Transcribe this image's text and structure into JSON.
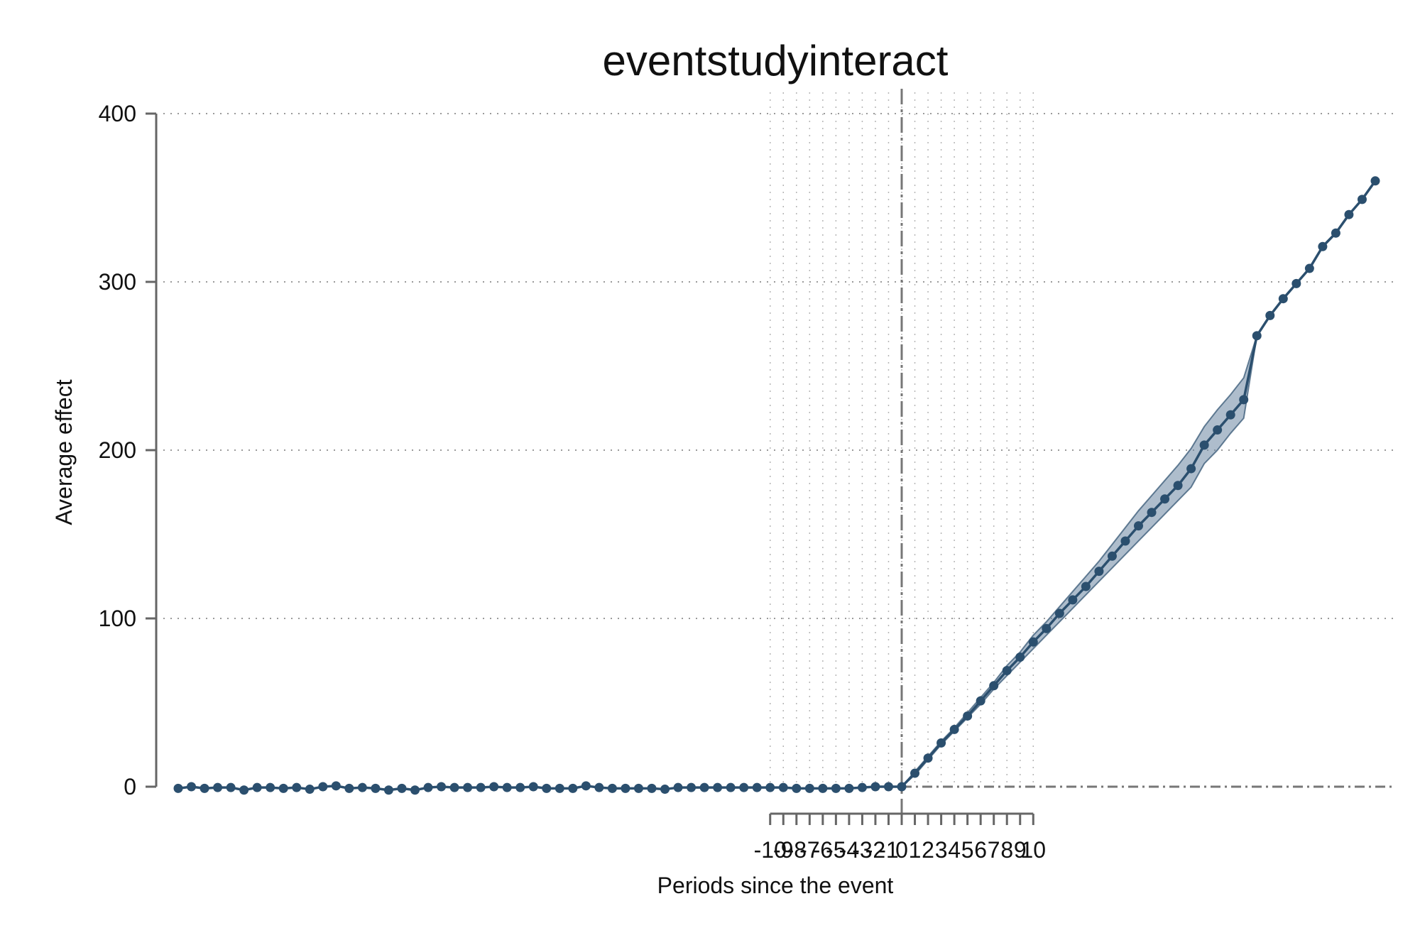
{
  "chart_data": {
    "type": "line",
    "title": "eventstudyinteract",
    "xlabel": "Periods since the event",
    "ylabel": "Average effect",
    "ylim": [
      0,
      400
    ],
    "yticks": [
      0,
      100,
      200,
      300,
      400
    ],
    "x_range": [
      -55,
      36
    ],
    "xtick_labels": [
      "-10",
      "-9",
      "-8",
      "-7",
      "-6",
      "-5",
      "-4",
      "-3",
      "-2",
      "-1",
      "0",
      "1",
      "2",
      "3",
      "4",
      "5",
      "6",
      "7",
      "8",
      "9",
      "10"
    ],
    "xtick_values": [
      -10,
      -9,
      -8,
      -7,
      -6,
      -5,
      -4,
      -3,
      -2,
      -1,
      0,
      1,
      2,
      3,
      4,
      5,
      6,
      7,
      8,
      9,
      10
    ],
    "event_line_x": 0,
    "reference_y": 0,
    "grid": true,
    "colors": {
      "series": "#2b4f6e",
      "band": "#6b87a3",
      "reference": "#777777"
    },
    "series": [
      {
        "x": [
          -55,
          -54,
          -53,
          -52,
          -51,
          -50,
          -49,
          -48,
          -47,
          -46,
          -45,
          -44,
          -43,
          -42,
          -41,
          -40,
          -39,
          -38,
          -37,
          -36,
          -35,
          -34,
          -33,
          -32,
          -31,
          -30,
          -29,
          -28,
          -27,
          -26,
          -25,
          -24,
          -23,
          -22,
          -21,
          -20,
          -19,
          -18,
          -17,
          -16,
          -15,
          -14,
          -13,
          -12,
          -11,
          -10,
          -9,
          -8,
          -7,
          -6,
          -5,
          -4,
          -3,
          -2,
          -1,
          0,
          1,
          2,
          3,
          4,
          5,
          6,
          7,
          8,
          9,
          10,
          11,
          12,
          13,
          14,
          15,
          16,
          17,
          18,
          19,
          20,
          21,
          22,
          23,
          24,
          25,
          26,
          27,
          28,
          29,
          30,
          31,
          32,
          33,
          34,
          35,
          36
        ],
        "y": [
          -1,
          0,
          -1,
          -0.5,
          -0.5,
          -2,
          -0.5,
          -0.5,
          -1,
          -0.5,
          -1.5,
          0,
          0.5,
          -1,
          -0.5,
          -1,
          -2,
          -1,
          -2,
          -0.5,
          0,
          -0.5,
          -0.5,
          -0.5,
          0,
          -0.5,
          -0.5,
          0,
          -1,
          -1,
          -1,
          0.5,
          -0.5,
          -1,
          -1,
          -1,
          -1,
          -1.5,
          -0.5,
          -0.5,
          -0.5,
          -0.5,
          -0.5,
          -0.5,
          -0.5,
          -0.5,
          -0.5,
          -1,
          -1,
          -1,
          -1,
          -1,
          -0.5,
          0,
          0,
          0,
          8,
          17,
          26,
          34,
          42,
          51,
          60,
          69,
          77,
          86,
          94,
          103,
          111,
          119,
          128,
          137,
          146,
          155,
          163,
          171,
          179,
          189,
          203,
          212,
          221,
          230,
          268,
          280,
          290,
          299,
          308,
          321,
          329,
          340,
          349,
          360
        ],
        "lower": [
          -1,
          0,
          -1,
          -0.5,
          -0.5,
          -2,
          -0.5,
          -0.5,
          -1,
          -0.5,
          -1.5,
          0,
          0.5,
          -1,
          -0.5,
          -1,
          -2,
          -1,
          -2,
          -0.5,
          0,
          -0.5,
          -0.5,
          -0.5,
          0,
          -0.5,
          -0.5,
          0,
          -1,
          -1,
          -1,
          0.5,
          -0.5,
          -1,
          -1,
          -1,
          -1,
          -1.5,
          -0.5,
          -0.5,
          -0.5,
          -0.5,
          -0.5,
          -0.5,
          -0.5,
          -0.5,
          -0.5,
          -1,
          -1,
          -1,
          -1,
          -1,
          -0.5,
          0,
          0,
          0,
          7,
          16,
          25,
          33,
          41,
          49,
          58,
          66,
          74,
          82,
          90,
          98,
          106,
          114,
          122,
          130,
          138,
          146,
          154,
          162,
          170,
          178,
          192,
          200,
          210,
          219,
          268,
          280,
          290,
          299,
          308,
          321,
          329,
          340,
          349,
          360
        ],
        "upper": [
          -1,
          0,
          -1,
          -0.5,
          -0.5,
          -2,
          -0.5,
          -0.5,
          -1,
          -0.5,
          -1.5,
          0,
          0.5,
          -1,
          -0.5,
          -1,
          -2,
          -1,
          -2,
          -0.5,
          0,
          -0.5,
          -0.5,
          -0.5,
          0,
          -0.5,
          -0.5,
          0,
          -1,
          -1,
          -1,
          0.5,
          -0.5,
          -1,
          -1,
          -1,
          -1,
          -1.5,
          -0.5,
          -0.5,
          -0.5,
          -0.5,
          -0.5,
          -0.5,
          -0.5,
          -0.5,
          -0.5,
          -1,
          -1,
          -1,
          -1,
          -1,
          -0.5,
          0,
          0,
          0,
          9,
          18,
          27,
          35,
          44,
          53,
          62,
          72,
          80,
          90,
          98,
          107,
          116,
          125,
          134,
          144,
          154,
          164,
          173,
          182,
          191,
          201,
          214,
          224,
          233,
          243,
          268,
          280,
          290,
          299,
          308,
          321,
          329,
          340,
          349,
          360
        ]
      }
    ]
  }
}
